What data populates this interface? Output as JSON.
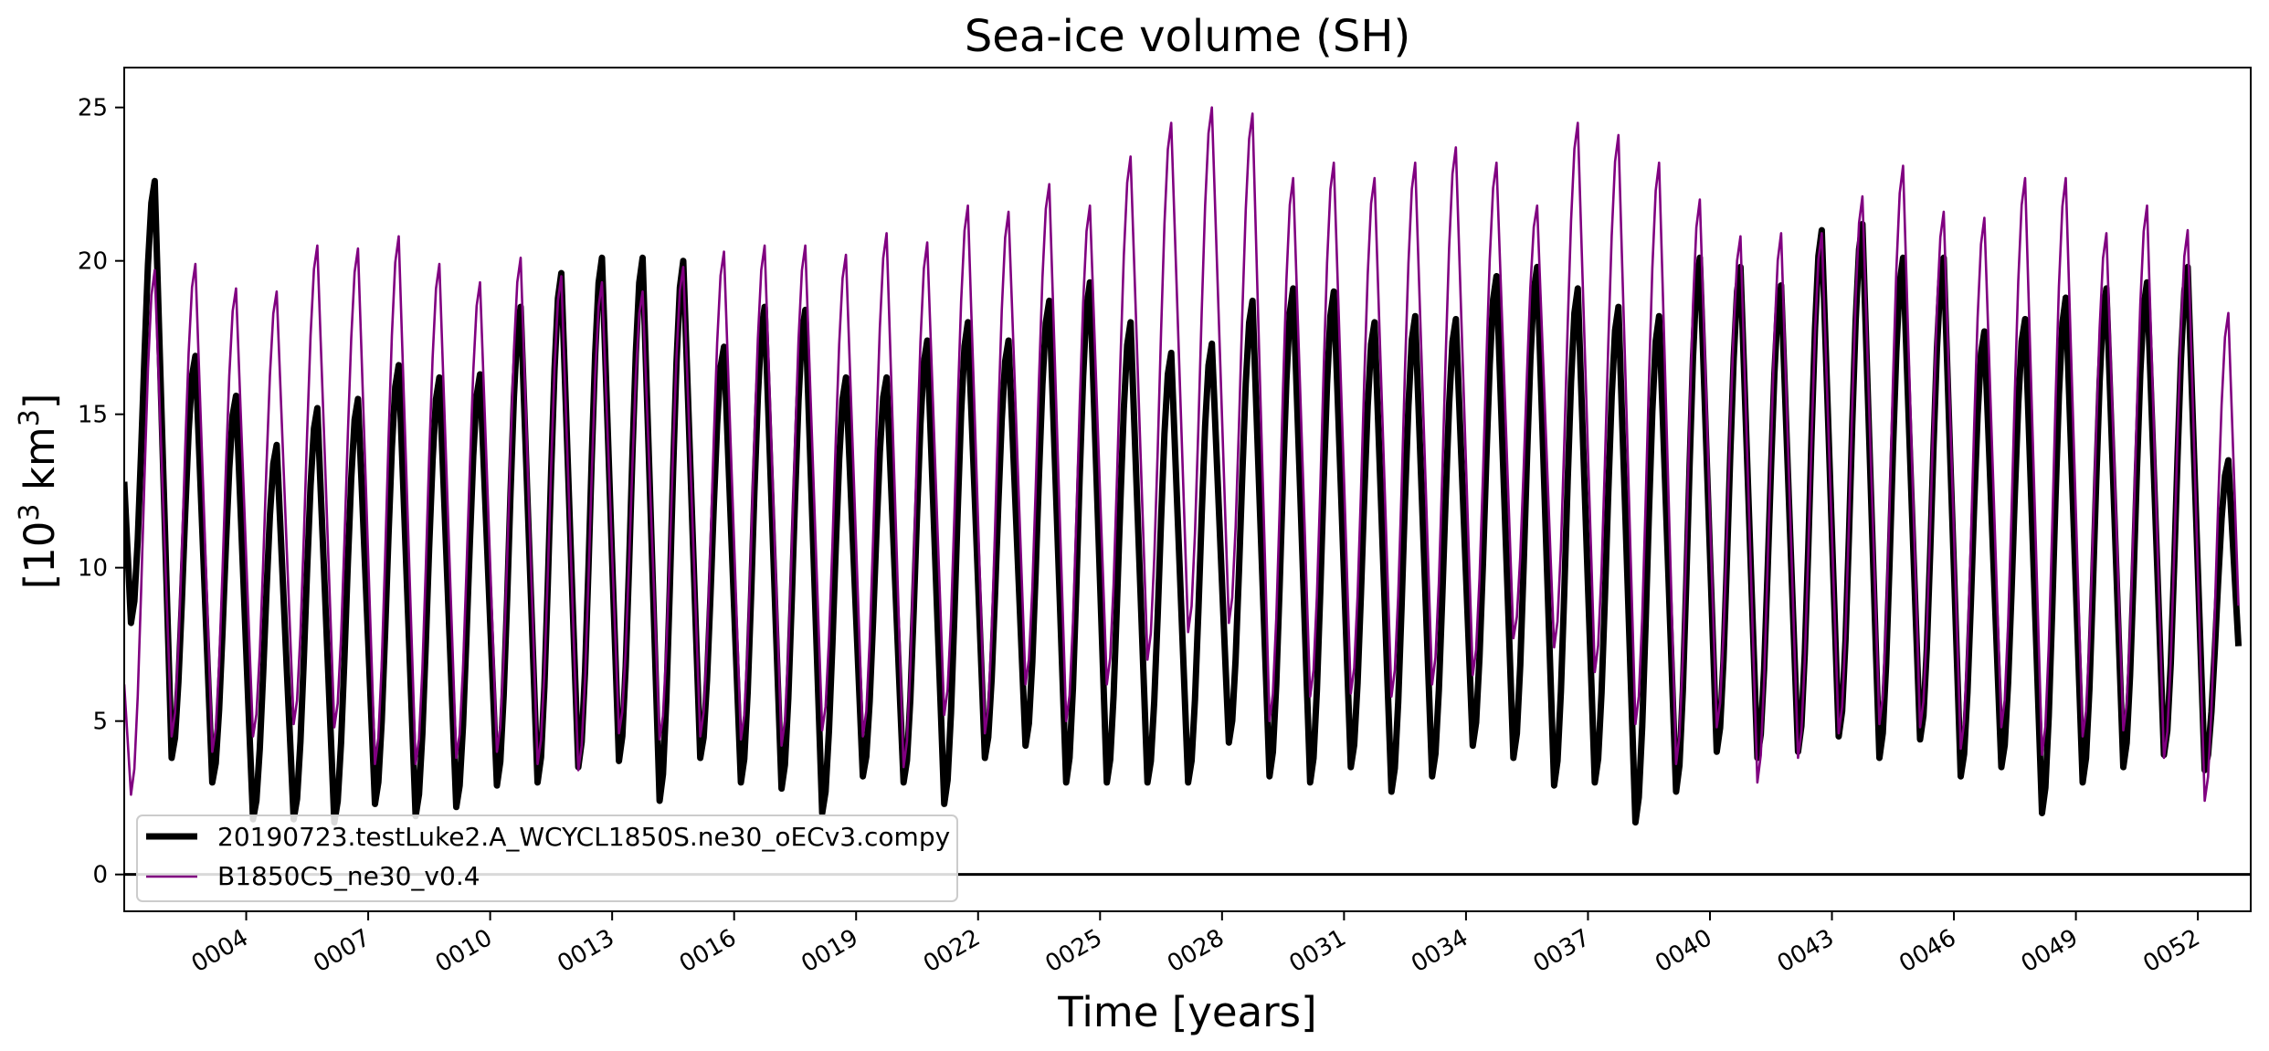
{
  "chart_data": {
    "type": "line",
    "title": "Sea-ice volume (SH)",
    "xlabel": "Time [years]",
    "ylabel_base": "[10",
    "ylabel_exp": "3",
    "ylabel_unit": " km",
    "ylabel_unit_exp": "3",
    "ylabel_close": "]",
    "xlim": [
      1,
      53.3
    ],
    "ylim": [
      -1.2,
      26.3
    ],
    "yticks": [
      0,
      5,
      10,
      15,
      20,
      25
    ],
    "xticks": [
      4,
      7,
      10,
      13,
      16,
      19,
      22,
      25,
      28,
      31,
      34,
      37,
      40,
      43,
      46,
      49,
      52
    ],
    "xtick_labels": [
      "0004",
      "0007",
      "0010",
      "0013",
      "0016",
      "0019",
      "0022",
      "0025",
      "0028",
      "0031",
      "0034",
      "0037",
      "0040",
      "0043",
      "0046",
      "0049",
      "0052"
    ],
    "grid": false,
    "legend_position": "lower-left",
    "zero_line": 0,
    "sampling": "monthly",
    "series": [
      {
        "name": "20190723.testLuke2.A_WCYCL1850S.ne30_oECv3.compy",
        "color": "#000000",
        "linewidth": 7,
        "start_year": 1,
        "start_value": 12.8,
        "yearly_min": [
          8.2,
          3.8,
          3.0,
          1.8,
          1.8,
          1.7,
          2.3,
          1.9,
          2.2,
          2.9,
          3.0,
          3.5,
          3.7,
          2.4,
          3.8,
          3.0,
          2.8,
          2.0,
          3.2,
          3.0,
          2.3,
          3.8,
          4.2,
          3.0,
          3.0,
          3.0,
          3.0,
          4.3,
          3.2,
          3.0,
          3.5,
          2.7,
          3.2,
          4.2,
          3.8,
          2.9,
          3.0,
          1.7,
          2.7,
          4.0,
          3.8,
          4.0,
          4.5,
          3.8,
          4.4,
          3.2,
          3.5,
          2.0,
          3.0,
          3.5,
          3.9,
          3.4
        ],
        "yearly_max": [
          22.6,
          16.9,
          15.6,
          14.0,
          15.2,
          15.5,
          16.6,
          16.2,
          16.3,
          18.5,
          19.6,
          20.1,
          20.1,
          20.0,
          17.2,
          18.5,
          18.4,
          16.2,
          16.2,
          17.4,
          18.0,
          17.4,
          18.7,
          19.3,
          18.0,
          17.0,
          17.3,
          18.7,
          19.1,
          19.0,
          18.0,
          18.2,
          18.1,
          19.5,
          19.8,
          19.1,
          18.5,
          18.2,
          20.1,
          19.8,
          19.2,
          21.0,
          21.2,
          20.1,
          20.1,
          17.7,
          18.1,
          18.8,
          19.1,
          19.3,
          19.8,
          13.5
        ]
      },
      {
        "name": "B1850C5_ne30_v0.4",
        "color": "#800080",
        "linewidth": 2.6,
        "start_year": 1,
        "start_value": 6.2,
        "yearly_min": [
          2.6,
          4.5,
          4.0,
          4.5,
          4.9,
          4.8,
          3.6,
          3.6,
          3.8,
          4.0,
          3.6,
          3.4,
          4.6,
          4.4,
          4.5,
          4.4,
          4.2,
          4.7,
          4.5,
          3.5,
          5.2,
          4.6,
          6.2,
          5.0,
          6.2,
          7.0,
          7.9,
          8.2,
          5.0,
          5.8,
          5.9,
          5.8,
          6.2,
          6.5,
          7.7,
          7.4,
          6.6,
          4.9,
          3.6,
          4.8,
          3.0,
          3.8,
          4.6,
          4.9,
          4.8,
          4.1,
          4.8,
          3.9,
          4.5,
          4.7,
          3.8,
          2.4
        ],
        "yearly_max": [
          19.7,
          19.9,
          19.1,
          19.0,
          20.5,
          20.4,
          20.8,
          19.9,
          19.3,
          20.1,
          19.5,
          19.3,
          19.0,
          19.8,
          20.3,
          20.5,
          20.5,
          20.2,
          20.9,
          20.6,
          21.8,
          21.6,
          22.5,
          21.8,
          23.4,
          24.5,
          25.0,
          24.8,
          22.7,
          23.2,
          22.7,
          23.2,
          23.7,
          23.2,
          21.8,
          24.5,
          24.1,
          23.2,
          22.0,
          20.8,
          20.9,
          20.9,
          22.1,
          23.1,
          21.6,
          21.4,
          22.7,
          22.7,
          20.9,
          21.8,
          21.0,
          18.3
        ]
      }
    ]
  }
}
